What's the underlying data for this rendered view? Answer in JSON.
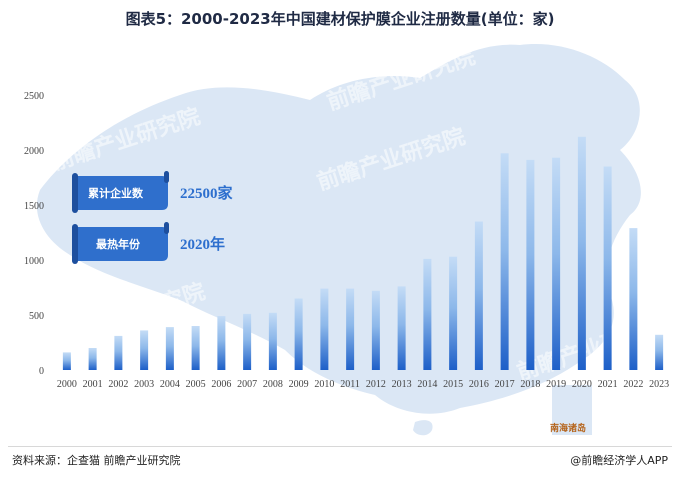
{
  "title": "图表5：2000-2023年中国建材保护膜企业注册数量(单位：家)",
  "callouts": [
    {
      "label": "累计企业数",
      "value": "22500家"
    },
    {
      "label": "最热年份",
      "value": "2020年"
    }
  ],
  "map_label": "南海诸岛",
  "watermark_text": "前瞻产业研究院",
  "footer": {
    "source": "资料来源：企查猫 前瞻产业研究院",
    "brand": "@前瞻经济学人APP"
  },
  "colors": {
    "bar_top": "#c4dcf6",
    "bar_bottom": "#1d5fc8",
    "map": "#dbe7f5",
    "callout_bg": "#2f6fcc",
    "callout_value": "#2d6fce"
  },
  "chart_data": {
    "type": "bar",
    "title": "图表5：2000-2023年中国建材保护膜企业注册数量(单位：家)",
    "xlabel": "",
    "ylabel": "",
    "categories": [
      "2000",
      "2001",
      "2002",
      "2003",
      "2004",
      "2005",
      "2006",
      "2007",
      "2008",
      "2009",
      "2010",
      "2011",
      "2012",
      "2013",
      "2014",
      "2015",
      "2016",
      "2017",
      "2018",
      "2019",
      "2020",
      "2021",
      "2022",
      "2023"
    ],
    "values": [
      160,
      200,
      310,
      360,
      390,
      400,
      490,
      510,
      520,
      650,
      740,
      740,
      720,
      760,
      1010,
      1030,
      1350,
      1970,
      1910,
      1930,
      2120,
      1850,
      1290,
      320
    ],
    "ylim": [
      0,
      2500
    ],
    "yticks": [
      0,
      500,
      1000,
      1500,
      2000,
      2500
    ],
    "grid": false,
    "legend": "none"
  }
}
